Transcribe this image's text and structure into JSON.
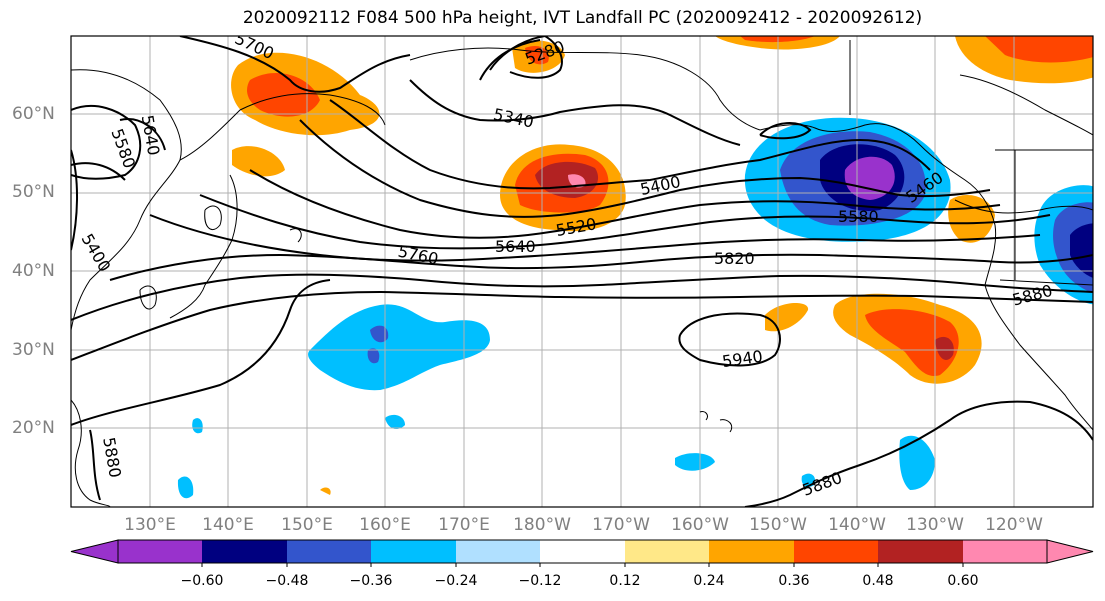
{
  "title": "2020092112 F084 500 hPa height, IVT Landfall PC (2020092412 - 2020092612)",
  "lat_labels": [
    "60°N",
    "50°N",
    "40°N",
    "30°N",
    "20°N"
  ],
  "lon_labels": [
    "130°E",
    "140°E",
    "150°E",
    "160°E",
    "170°E",
    "180°W",
    "170°W",
    "160°W",
    "150°W",
    "140°W",
    "130°W",
    "120°W"
  ],
  "contour_labels": [
    "5700",
    "5280",
    "5580",
    "5640",
    "5340",
    "5400",
    "5460",
    "5520",
    "5580",
    "5640",
    "5760",
    "5820",
    "5880",
    "5940",
    "5880",
    "5880",
    "5400"
  ],
  "colorbar": {
    "ticks": [
      "−0.60",
      "−0.48",
      "−0.36",
      "−0.24",
      "−0.12",
      "0.12",
      "0.24",
      "0.36",
      "0.48",
      "0.60"
    ],
    "colors": [
      "#9932cc",
      "#000080",
      "#3355cc",
      "#00bfff",
      "#b0e0ff",
      "#ffffff",
      "#ffe888",
      "#ffa500",
      "#ff4500",
      "#b22222",
      "#ff88b0",
      "#ff88b0"
    ]
  },
  "colors": {
    "purple": "#9932cc",
    "navy": "#000080",
    "royal": "#3355cc",
    "sky": "#00bfff",
    "lightblue": "#b0e0ff",
    "yellow": "#ffe888",
    "orange": "#ffa500",
    "redorange": "#ff4500",
    "darkred": "#b22222",
    "pink": "#ff88b0"
  }
}
